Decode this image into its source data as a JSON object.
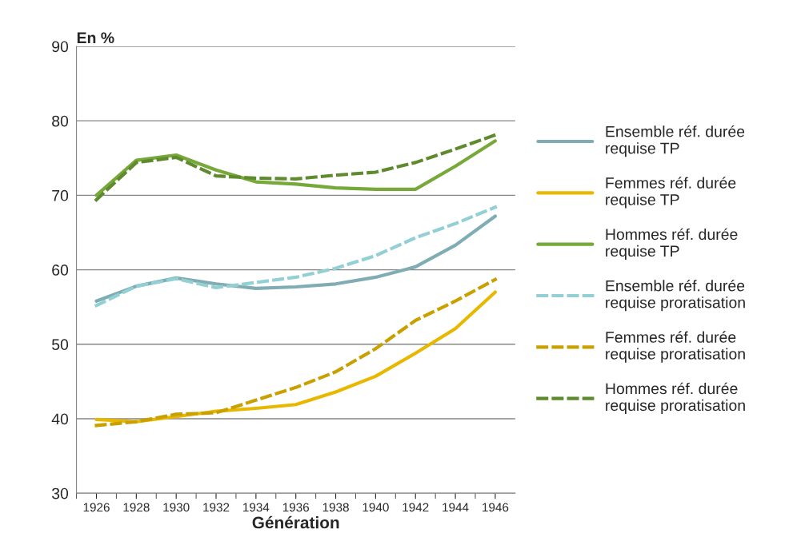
{
  "chart_data": {
    "type": "line",
    "ylabel": "En %",
    "xlabel": "Génération",
    "categories": [
      "1926",
      "1928",
      "1930",
      "1932",
      "1934",
      "1936",
      "1938",
      "1940",
      "1942",
      "1944",
      "1946"
    ],
    "ylim": [
      30,
      90
    ],
    "yticks": [
      30,
      40,
      50,
      60,
      70,
      80,
      90
    ],
    "grid": "y",
    "legend": "right",
    "series": [
      {
        "name": "Ensemble réf. durée\nrequise TP",
        "color": "#7fadb3",
        "line_style": "solid",
        "values": [
          55.8,
          57.8,
          58.9,
          58.1,
          57.5,
          57.7,
          58.1,
          59.0,
          60.4,
          63.3,
          67.2
        ]
      },
      {
        "name": "Femmes réf. durée\nrequise TP",
        "color": "#e8b800",
        "line_style": "solid",
        "values": [
          39.9,
          39.6,
          40.3,
          41.0,
          41.4,
          41.9,
          43.6,
          45.7,
          48.8,
          52.1,
          57.0
        ]
      },
      {
        "name": "Hommes réf. durée\nrequise TP",
        "color": "#77a83a",
        "line_style": "solid",
        "values": [
          70.0,
          74.7,
          75.4,
          73.4,
          71.8,
          71.5,
          71.0,
          70.8,
          70.8,
          73.9,
          77.3
        ]
      },
      {
        "name": "Ensemble réf. durée\nrequise proratisation",
        "color": "#92d0d4",
        "line_style": "dashed",
        "values": [
          55.2,
          57.8,
          58.8,
          57.6,
          58.3,
          59.0,
          60.2,
          61.9,
          64.3,
          66.2,
          68.4
        ]
      },
      {
        "name": "Femmes réf. durée\nrequise proratisation",
        "color": "#c9a000",
        "line_style": "dashed",
        "values": [
          39.1,
          39.6,
          40.6,
          40.8,
          42.5,
          44.2,
          46.3,
          49.4,
          53.2,
          55.8,
          58.7
        ]
      },
      {
        "name": "Hommes réf. durée\nrequise proratisation",
        "color": "#5f8a2e",
        "line_style": "dashed",
        "values": [
          69.4,
          74.4,
          75.1,
          72.6,
          72.3,
          72.2,
          72.7,
          73.1,
          74.4,
          76.2,
          78.1
        ]
      }
    ]
  }
}
